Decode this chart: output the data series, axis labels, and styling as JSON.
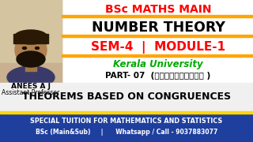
{
  "bg_color": "#ffffff",
  "orange_line_color": "#FFA500",
  "blue_bar_color": "#1e3f9e",
  "red_text_color": "#ff0000",
  "green_text_color": "#00aa00",
  "black_text_color": "#000000",
  "white_text_color": "#ffffff",
  "title1": "BSc MATHS MAIN",
  "title2": "NUMBER THEORY",
  "title3": "SEM-4  |  MODULE-1",
  "title4": "Kerala University",
  "title5": "PART- 07  (മലയാളത്തിൽ )",
  "name": "ANEES A J",
  "role": "Assistant Professor",
  "bottom_line1": "SPECIAL TUITION FOR MATHEMATICS AND STATISTICS",
  "bottom_line2": "BSc (Main&Sub)     |      Whatsapp / Call - 9037883077",
  "section_title": "THEOREMS BASED ON CONGRUENCES",
  "photo_bg": "#c8a87a",
  "photo_face": "#a07845",
  "photo_hair": "#2a1a05",
  "photo_beard": "#1a1005"
}
